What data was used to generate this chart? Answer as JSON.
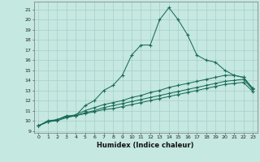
{
  "xlabel": "Humidex (Indice chaleur)",
  "background_color": "#c5e8e0",
  "grid_color": "#a8cfc8",
  "line_color": "#1a6b5a",
  "xlim": [
    -0.5,
    23.5
  ],
  "ylim": [
    8.8,
    21.8
  ],
  "xticks": [
    0,
    1,
    2,
    3,
    4,
    5,
    6,
    7,
    8,
    9,
    10,
    11,
    12,
    13,
    14,
    15,
    16,
    17,
    18,
    19,
    20,
    21,
    22,
    23
  ],
  "yticks": [
    9,
    10,
    11,
    12,
    13,
    14,
    15,
    16,
    17,
    18,
    19,
    20,
    21
  ],
  "lines": [
    {
      "x": [
        0,
        1,
        2,
        3,
        4,
        5,
        6,
        7,
        8,
        9,
        10,
        11,
        12,
        13,
        14,
        15,
        16,
        17,
        18,
        19,
        20,
        21,
        22,
        23
      ],
      "y": [
        9.5,
        10.0,
        10.1,
        10.5,
        10.5,
        11.5,
        12.0,
        13.0,
        13.5,
        14.5,
        16.5,
        17.5,
        17.5,
        20.0,
        21.2,
        20.0,
        18.5,
        16.5,
        16.0,
        15.8,
        15.0,
        14.5,
        14.3,
        13.2
      ]
    },
    {
      "x": [
        0,
        1,
        2,
        3,
        4,
        5,
        6,
        7,
        8,
        9,
        10,
        11,
        12,
        13,
        14,
        15,
        16,
        17,
        18,
        19,
        20,
        21,
        22,
        23
      ],
      "y": [
        9.5,
        9.9,
        10.1,
        10.4,
        10.6,
        11.0,
        11.3,
        11.6,
        11.8,
        12.0,
        12.3,
        12.5,
        12.8,
        13.0,
        13.3,
        13.5,
        13.7,
        13.9,
        14.1,
        14.3,
        14.5,
        14.5,
        14.3,
        13.2
      ]
    },
    {
      "x": [
        0,
        1,
        2,
        3,
        4,
        5,
        6,
        7,
        8,
        9,
        10,
        11,
        12,
        13,
        14,
        15,
        16,
        17,
        18,
        19,
        20,
        21,
        22,
        23
      ],
      "y": [
        9.5,
        9.9,
        10.1,
        10.4,
        10.5,
        10.8,
        11.0,
        11.3,
        11.5,
        11.7,
        11.9,
        12.1,
        12.3,
        12.5,
        12.7,
        12.9,
        13.1,
        13.3,
        13.5,
        13.7,
        13.9,
        14.0,
        14.1,
        13.1
      ]
    },
    {
      "x": [
        0,
        1,
        2,
        3,
        4,
        5,
        6,
        7,
        8,
        9,
        10,
        11,
        12,
        13,
        14,
        15,
        16,
        17,
        18,
        19,
        20,
        21,
        22,
        23
      ],
      "y": [
        9.5,
        9.9,
        10.0,
        10.3,
        10.5,
        10.7,
        10.9,
        11.1,
        11.2,
        11.4,
        11.6,
        11.8,
        12.0,
        12.2,
        12.4,
        12.6,
        12.8,
        13.0,
        13.2,
        13.4,
        13.6,
        13.7,
        13.8,
        12.9
      ]
    }
  ]
}
